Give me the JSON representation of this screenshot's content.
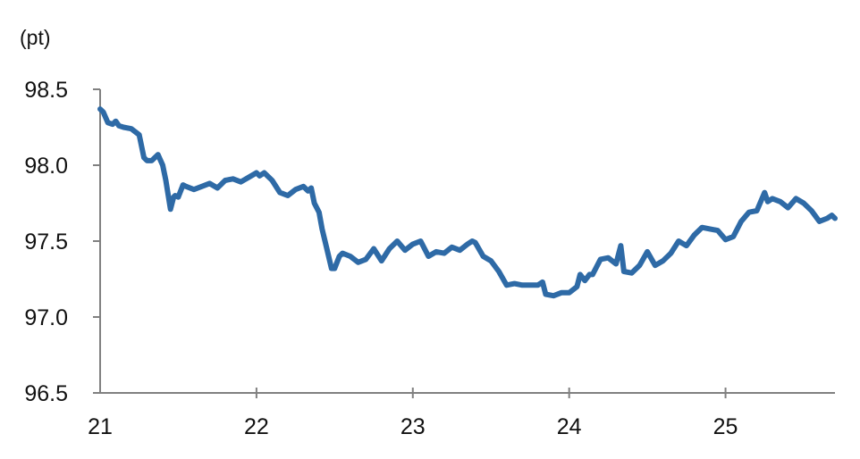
{
  "chart_data": {
    "type": "line",
    "title": "",
    "xlabel": "",
    "ylabel": "(pt)",
    "x_tick_labels": [
      "21",
      "22",
      "23",
      "24",
      "25"
    ],
    "x_ticks": [
      2021,
      2022,
      2023,
      2024,
      2025
    ],
    "xlim": [
      2021,
      2025.7
    ],
    "y_tick_labels": [
      "96.5",
      "97.0",
      "97.5",
      "98.0",
      "98.5"
    ],
    "y_ticks": [
      96.5,
      97.0,
      97.5,
      98.0,
      98.5
    ],
    "ylim": [
      96.5,
      98.5
    ],
    "grid": false,
    "legend": "none",
    "colors": {
      "line": "#2E6AA6",
      "axis": "#808080"
    },
    "series": [
      {
        "x": [
          2021.0,
          2021.02,
          2021.05,
          2021.08,
          2021.1,
          2021.12,
          2021.15,
          2021.2,
          2021.25,
          2021.28,
          2021.3,
          2021.33,
          2021.37,
          2021.4,
          2021.42,
          2021.45,
          2021.47,
          2021.48,
          2021.5,
          2021.53,
          2021.55,
          2021.6,
          2021.65,
          2021.7,
          2021.75,
          2021.8,
          2021.85,
          2021.9,
          2021.95,
          2022.0,
          2022.02,
          2022.05,
          2022.1,
          2022.15,
          2022.2,
          2022.25,
          2022.3,
          2022.33,
          2022.35,
          2022.37,
          2022.4,
          2022.42,
          2022.45,
          2022.48,
          2022.5,
          2022.53,
          2022.55,
          2022.6,
          2022.65,
          2022.7,
          2022.75,
          2022.8,
          2022.85,
          2022.9,
          2022.95,
          2023.0,
          2023.05,
          2023.1,
          2023.15,
          2023.2,
          2023.25,
          2023.3,
          2023.35,
          2023.38,
          2023.4,
          2023.45,
          2023.5,
          2023.55,
          2023.6,
          2023.65,
          2023.7,
          2023.75,
          2023.8,
          2023.83,
          2023.85,
          2023.9,
          2023.95,
          2024.0,
          2024.05,
          2024.07,
          2024.1,
          2024.13,
          2024.15,
          2024.2,
          2024.25,
          2024.3,
          2024.33,
          2024.35,
          2024.4,
          2024.45,
          2024.5,
          2024.55,
          2024.6,
          2024.65,
          2024.7,
          2024.75,
          2024.8,
          2024.85,
          2024.9,
          2024.95,
          2025.0,
          2025.05,
          2025.1,
          2025.15,
          2025.2,
          2025.25,
          2025.27,
          2025.3,
          2025.35,
          2025.4,
          2025.45,
          2025.5,
          2025.55,
          2025.6,
          2025.65,
          2025.68,
          2025.7
        ],
        "values": [
          98.37,
          98.35,
          98.28,
          98.27,
          98.29,
          98.26,
          98.25,
          98.24,
          98.2,
          98.05,
          98.03,
          98.03,
          98.07,
          98.0,
          97.9,
          97.71,
          97.79,
          97.8,
          97.79,
          97.87,
          97.86,
          97.84,
          97.86,
          97.88,
          97.85,
          97.9,
          97.91,
          97.89,
          97.92,
          97.95,
          97.93,
          97.95,
          97.9,
          97.82,
          97.8,
          97.84,
          97.86,
          97.83,
          97.85,
          97.75,
          97.69,
          97.58,
          97.45,
          97.32,
          97.32,
          97.4,
          97.42,
          97.4,
          97.36,
          97.38,
          97.45,
          97.37,
          97.45,
          97.5,
          97.44,
          97.48,
          97.5,
          97.4,
          97.43,
          97.42,
          97.46,
          97.44,
          97.48,
          97.5,
          97.49,
          97.4,
          97.37,
          97.3,
          97.21,
          97.22,
          97.21,
          97.21,
          97.21,
          97.23,
          97.15,
          97.14,
          97.16,
          97.16,
          97.2,
          97.28,
          97.24,
          97.28,
          97.28,
          97.38,
          97.39,
          97.35,
          97.47,
          97.3,
          97.29,
          97.34,
          97.43,
          97.34,
          97.37,
          97.42,
          97.5,
          97.47,
          97.54,
          97.59,
          97.58,
          97.57,
          97.51,
          97.53,
          97.63,
          97.69,
          97.7,
          97.82,
          97.76,
          97.78,
          97.76,
          97.72,
          97.78,
          97.75,
          97.7,
          97.63,
          97.65,
          97.67,
          97.65
        ]
      }
    ]
  }
}
